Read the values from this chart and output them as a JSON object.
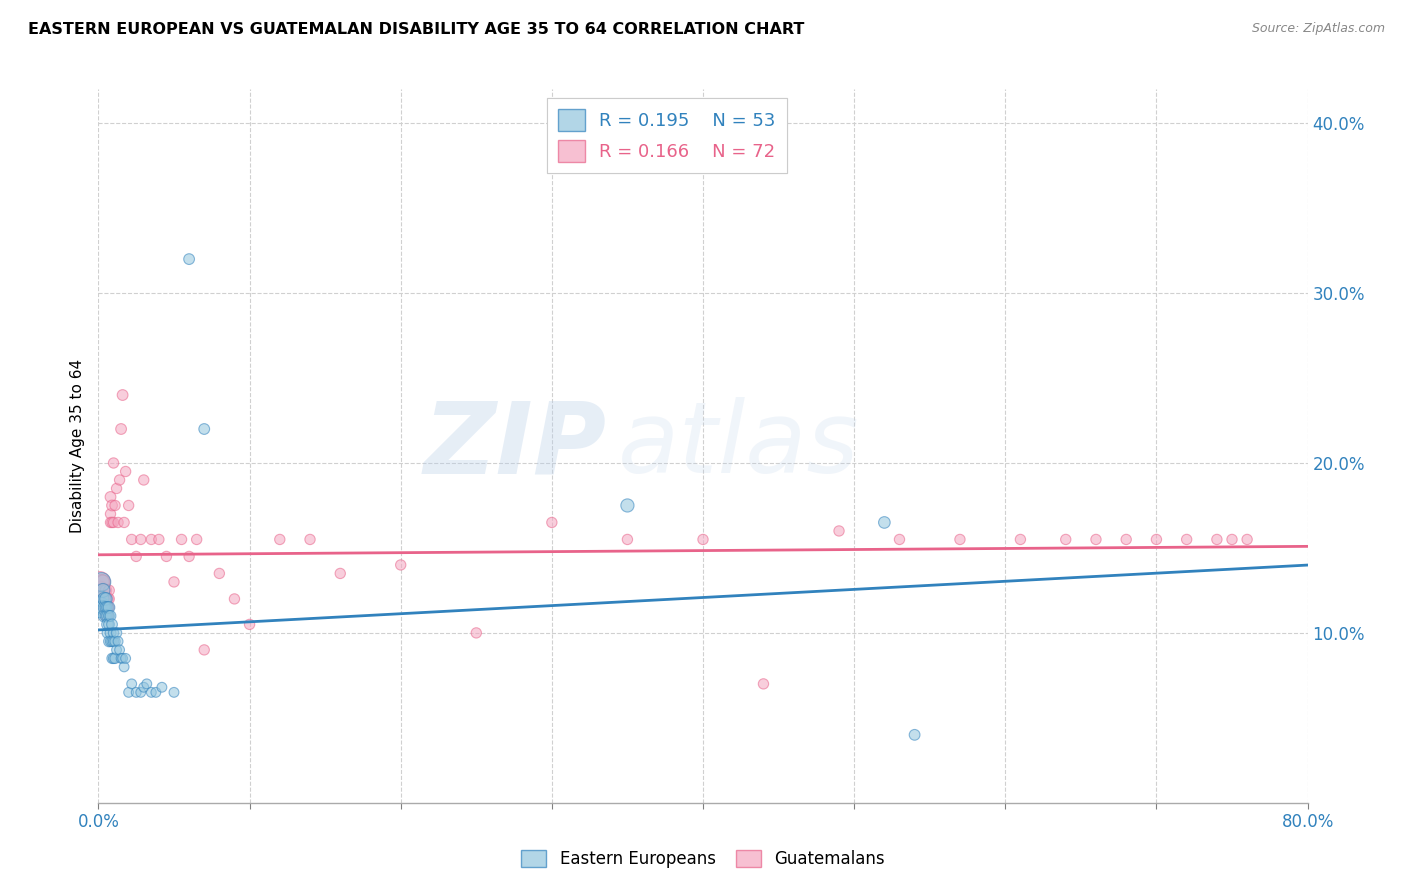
{
  "title": "EASTERN EUROPEAN VS GUATEMALAN DISABILITY AGE 35 TO 64 CORRELATION CHART",
  "source": "Source: ZipAtlas.com",
  "ylabel": "Disability Age 35 to 64",
  "ytick_labels": [
    "10.0%",
    "20.0%",
    "30.0%",
    "40.0%"
  ],
  "ytick_values": [
    0.1,
    0.2,
    0.3,
    0.4
  ],
  "xmin": 0.0,
  "xmax": 0.8,
  "ymin": 0.0,
  "ymax": 0.42,
  "legend_r1": "R = 0.195",
  "legend_n1": "N = 53",
  "legend_r2": "R = 0.166",
  "legend_n2": "N = 72",
  "color_blue": "#92c5de",
  "color_pink": "#f4a6c0",
  "line_color_blue": "#3182bd",
  "line_color_pink": "#e8638a",
  "watermark_zip": "ZIP",
  "watermark_atlas": "atlas",
  "ee_x": [
    0.001,
    0.002,
    0.002,
    0.003,
    0.003,
    0.004,
    0.004,
    0.004,
    0.005,
    0.005,
    0.005,
    0.006,
    0.006,
    0.006,
    0.006,
    0.007,
    0.007,
    0.007,
    0.007,
    0.008,
    0.008,
    0.008,
    0.009,
    0.009,
    0.009,
    0.01,
    0.01,
    0.01,
    0.011,
    0.011,
    0.012,
    0.012,
    0.013,
    0.014,
    0.015,
    0.016,
    0.017,
    0.018,
    0.02,
    0.022,
    0.025,
    0.028,
    0.03,
    0.032,
    0.035,
    0.038,
    0.042,
    0.05,
    0.06,
    0.07,
    0.35,
    0.52,
    0.54
  ],
  "ee_y": [
    0.115,
    0.13,
    0.12,
    0.125,
    0.115,
    0.12,
    0.115,
    0.11,
    0.12,
    0.115,
    0.11,
    0.115,
    0.11,
    0.105,
    0.1,
    0.115,
    0.11,
    0.105,
    0.095,
    0.11,
    0.1,
    0.095,
    0.105,
    0.095,
    0.085,
    0.1,
    0.095,
    0.085,
    0.095,
    0.085,
    0.1,
    0.09,
    0.095,
    0.09,
    0.085,
    0.085,
    0.08,
    0.085,
    0.065,
    0.07,
    0.065,
    0.065,
    0.068,
    0.07,
    0.065,
    0.065,
    0.068,
    0.065,
    0.32,
    0.22,
    0.175,
    0.165,
    0.04
  ],
  "ee_size": [
    220,
    180,
    120,
    100,
    100,
    90,
    80,
    80,
    80,
    70,
    70,
    70,
    70,
    70,
    60,
    70,
    60,
    60,
    60,
    60,
    60,
    55,
    60,
    55,
    55,
    55,
    55,
    55,
    55,
    55,
    55,
    50,
    50,
    50,
    50,
    50,
    50,
    50,
    50,
    50,
    50,
    50,
    50,
    50,
    50,
    50,
    50,
    50,
    60,
    60,
    90,
    70,
    60
  ],
  "gt_x": [
    0.001,
    0.001,
    0.002,
    0.002,
    0.003,
    0.003,
    0.003,
    0.004,
    0.004,
    0.004,
    0.005,
    0.005,
    0.005,
    0.005,
    0.006,
    0.006,
    0.006,
    0.007,
    0.007,
    0.007,
    0.008,
    0.008,
    0.008,
    0.009,
    0.009,
    0.01,
    0.01,
    0.011,
    0.012,
    0.013,
    0.014,
    0.015,
    0.016,
    0.017,
    0.018,
    0.02,
    0.022,
    0.025,
    0.028,
    0.03,
    0.035,
    0.04,
    0.045,
    0.05,
    0.055,
    0.06,
    0.065,
    0.07,
    0.08,
    0.09,
    0.1,
    0.12,
    0.14,
    0.16,
    0.2,
    0.25,
    0.3,
    0.35,
    0.4,
    0.44,
    0.49,
    0.53,
    0.57,
    0.61,
    0.64,
    0.66,
    0.68,
    0.7,
    0.72,
    0.74,
    0.75,
    0.76
  ],
  "gt_y": [
    0.13,
    0.125,
    0.13,
    0.125,
    0.13,
    0.125,
    0.12,
    0.125,
    0.12,
    0.115,
    0.125,
    0.12,
    0.115,
    0.11,
    0.12,
    0.115,
    0.11,
    0.125,
    0.12,
    0.115,
    0.18,
    0.17,
    0.165,
    0.175,
    0.165,
    0.2,
    0.165,
    0.175,
    0.185,
    0.165,
    0.19,
    0.22,
    0.24,
    0.165,
    0.195,
    0.175,
    0.155,
    0.145,
    0.155,
    0.19,
    0.155,
    0.155,
    0.145,
    0.13,
    0.155,
    0.145,
    0.155,
    0.09,
    0.135,
    0.12,
    0.105,
    0.155,
    0.155,
    0.135,
    0.14,
    0.1,
    0.165,
    0.155,
    0.155,
    0.07,
    0.16,
    0.155,
    0.155,
    0.155,
    0.155,
    0.155,
    0.155,
    0.155,
    0.155,
    0.155,
    0.155,
    0.155
  ],
  "gt_size": [
    220,
    180,
    120,
    100,
    100,
    90,
    80,
    80,
    80,
    70,
    70,
    70,
    70,
    60,
    70,
    60,
    60,
    60,
    60,
    55,
    60,
    55,
    55,
    60,
    55,
    55,
    55,
    55,
    55,
    55,
    55,
    60,
    60,
    55,
    55,
    55,
    55,
    55,
    55,
    55,
    55,
    55,
    55,
    55,
    55,
    55,
    55,
    55,
    55,
    55,
    55,
    55,
    55,
    55,
    55,
    55,
    55,
    55,
    55,
    55,
    55,
    55,
    55,
    55,
    55,
    55,
    55,
    55,
    55,
    55,
    55,
    55
  ]
}
